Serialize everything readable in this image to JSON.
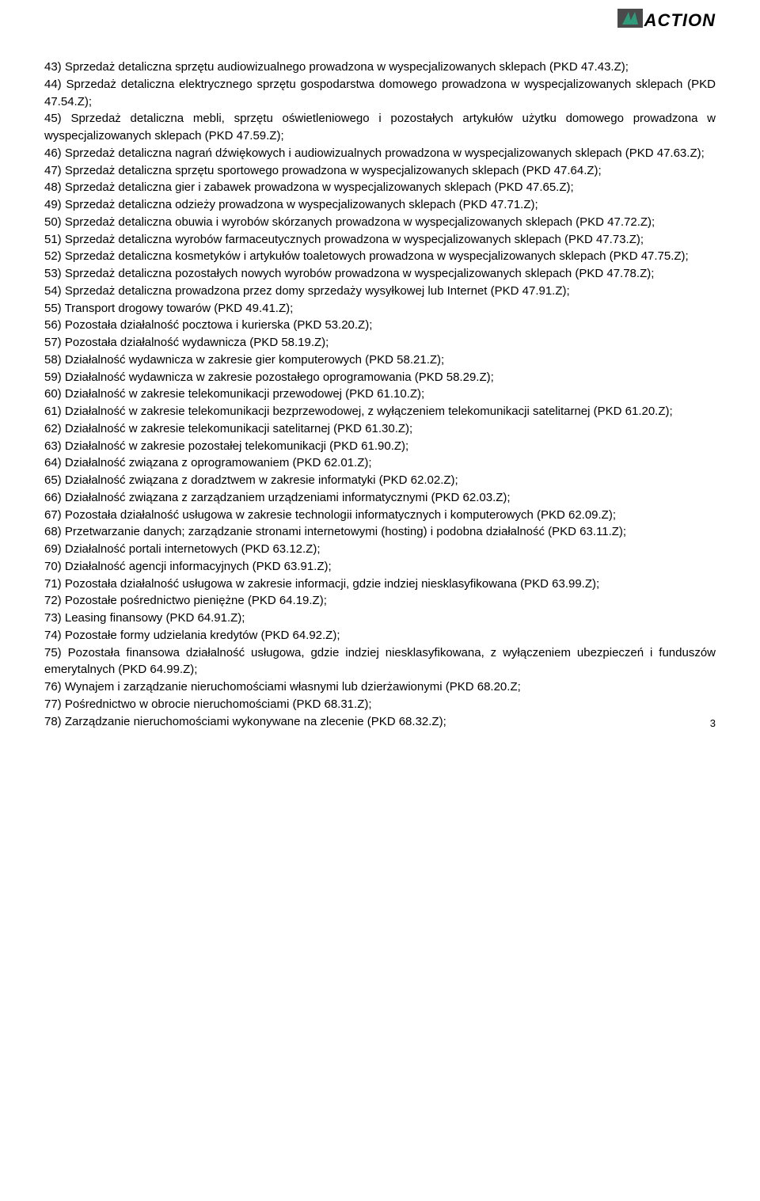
{
  "logo": {
    "text": "ACTION"
  },
  "items": [
    {
      "n": "43)",
      "t": "Sprzedaż detaliczna sprzętu audiowizualnego prowadzona w wyspecjalizowanych sklepach (PKD 47.43.Z);"
    },
    {
      "n": "44)",
      "t": "Sprzedaż detaliczna elektrycznego sprzętu gospodarstwa domowego prowadzona w wyspecjalizowanych sklepach (PKD 47.54.Z);"
    },
    {
      "n": "45)",
      "t": "Sprzedaż detaliczna mebli, sprzętu oświetleniowego i pozostałych artykułów użytku domowego prowadzona w wyspecjalizowanych sklepach (PKD 47.59.Z);"
    },
    {
      "n": "46)",
      "t": "Sprzedaż detaliczna nagrań dźwiękowych i audiowizualnych prowadzona w wyspecjalizowanych sklepach (PKD 47.63.Z);"
    },
    {
      "n": "47)",
      "t": "Sprzedaż detaliczna sprzętu sportowego prowadzona w wyspecjalizowanych sklepach (PKD 47.64.Z);"
    },
    {
      "n": "48)",
      "t": "Sprzedaż detaliczna gier i zabawek prowadzona w wyspecjalizowanych sklepach (PKD 47.65.Z);"
    },
    {
      "n": "49)",
      "t": "Sprzedaż detaliczna odzieży prowadzona w wyspecjalizowanych sklepach (PKD 47.71.Z);"
    },
    {
      "n": "50)",
      "t": "Sprzedaż detaliczna obuwia i wyrobów skórzanych prowadzona w wyspecjalizowanych sklepach (PKD 47.72.Z);"
    },
    {
      "n": "51)",
      "t": "Sprzedaż detaliczna wyrobów farmaceutycznych prowadzona w wyspecjalizowanych sklepach (PKD 47.73.Z);"
    },
    {
      "n": "52)",
      "t": "Sprzedaż detaliczna kosmetyków i artykułów toaletowych prowadzona w wyspecjalizowanych sklepach (PKD 47.75.Z);"
    },
    {
      "n": "53)",
      "t": "Sprzedaż detaliczna pozostałych nowych wyrobów prowadzona w wyspecjalizowanych sklepach (PKD 47.78.Z);"
    },
    {
      "n": "54)",
      "t": "Sprzedaż detaliczna prowadzona przez domy sprzedaży wysyłkowej lub Internet (PKD 47.91.Z);"
    },
    {
      "n": "55)",
      "t": "Transport drogowy towarów (PKD 49.41.Z);"
    },
    {
      "n": "56)",
      "t": "Pozostała działalność pocztowa i kurierska (PKD 53.20.Z);"
    },
    {
      "n": "57)",
      "t": "Pozostała działalność wydawnicza (PKD 58.19.Z);"
    },
    {
      "n": "58)",
      "t": "Działalność wydawnicza w zakresie gier komputerowych (PKD 58.21.Z);"
    },
    {
      "n": "59)",
      "t": "Działalność wydawnicza w zakresie pozostałego oprogramowania (PKD 58.29.Z);"
    },
    {
      "n": "60)",
      "t": "Działalność w zakresie telekomunikacji przewodowej (PKD 61.10.Z);"
    },
    {
      "n": "61)",
      "t": "Działalność w zakresie telekomunikacji bezprzewodowej, z wyłączeniem telekomunikacji satelitarnej (PKD 61.20.Z);"
    },
    {
      "n": "62)",
      "t": "Działalność w zakresie telekomunikacji satelitarnej (PKD 61.30.Z);"
    },
    {
      "n": "63)",
      "t": "Działalność w zakresie pozostałej telekomunikacji (PKD 61.90.Z);"
    },
    {
      "n": "64)",
      "t": "Działalność związana z oprogramowaniem (PKD 62.01.Z);"
    },
    {
      "n": "65)",
      "t": "Działalność związana z doradztwem w zakresie informatyki (PKD 62.02.Z);"
    },
    {
      "n": "66)",
      "t": "Działalność związana z zarządzaniem urządzeniami informatycznymi (PKD 62.03.Z);"
    },
    {
      "n": "67)",
      "t": "Pozostała działalność usługowa w zakresie technologii informatycznych i komputerowych (PKD 62.09.Z);"
    },
    {
      "n": "68)",
      "t": "Przetwarzanie danych; zarządzanie stronami internetowymi (hosting) i podobna działalność (PKD 63.11.Z);"
    },
    {
      "n": "69)",
      "t": "Działalność portali internetowych (PKD 63.12.Z);"
    },
    {
      "n": "70)",
      "t": "Działalność agencji informacyjnych (PKD 63.91.Z);"
    },
    {
      "n": "71)",
      "t": "Pozostała działalność usługowa w zakresie informacji, gdzie indziej niesklasyfikowana (PKD 63.99.Z);"
    },
    {
      "n": "72)",
      "t": "Pozostałe pośrednictwo pieniężne (PKD 64.19.Z);"
    },
    {
      "n": "73)",
      "t": "Leasing finansowy (PKD 64.91.Z);"
    },
    {
      "n": "74)",
      "t": "Pozostałe formy udzielania kredytów (PKD 64.92.Z);"
    },
    {
      "n": "75)",
      "t": "Pozostała finansowa działalność usługowa, gdzie indziej niesklasyfikowana, z wyłączeniem ubezpieczeń i funduszów emerytalnych (PKD 64.99.Z);"
    },
    {
      "n": "76)",
      "t": "Wynajem i zarządzanie nieruchomościami własnymi lub dzierżawionymi (PKD 68.20.Z;"
    },
    {
      "n": "77)",
      "t": "Pośrednictwo w obrocie nieruchomościami (PKD 68.31.Z);"
    },
    {
      "n": "78)",
      "t": "Zarządzanie nieruchomościami wykonywane na zlecenie (PKD 68.32.Z);"
    }
  ],
  "page_number": "3"
}
